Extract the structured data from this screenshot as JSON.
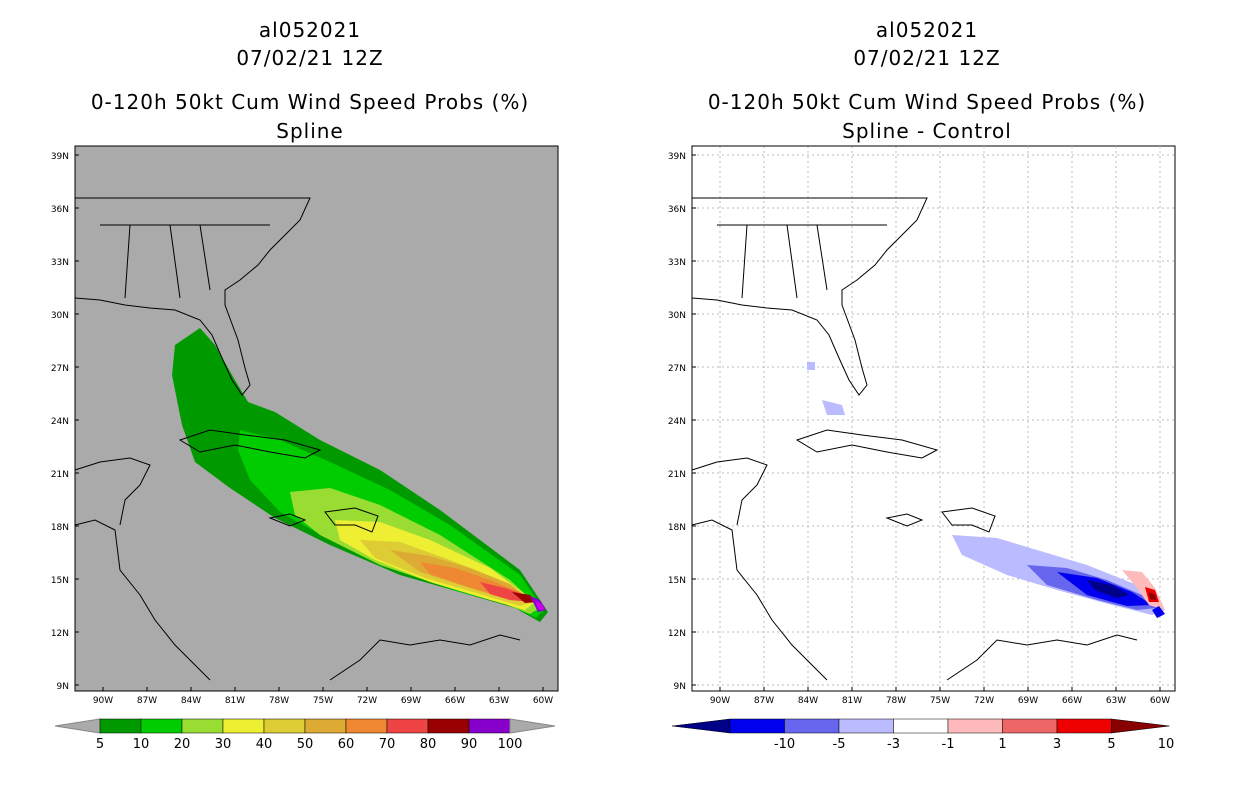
{
  "panels": [
    {
      "storm_id": "al052021",
      "datetime": "07/02/21 12Z",
      "product": "0-120h 50kt Cum Wind Speed Probs (%)",
      "subtitle": "Spline",
      "background_color": "#aaaaaa",
      "lat_labels": [
        "39N",
        "36N",
        "33N",
        "30N",
        "27N",
        "24N",
        "21N",
        "18N",
        "15N",
        "12N",
        "9N"
      ],
      "lon_labels": [
        "90W",
        "87W",
        "84W",
        "81W",
        "78W",
        "75W",
        "72W",
        "69W",
        "66W",
        "63W",
        "60W"
      ],
      "colorbar": {
        "labels": [
          "5",
          "10",
          "20",
          "30",
          "40",
          "50",
          "60",
          "70",
          "80",
          "90",
          "100"
        ],
        "colors": [
          "#009900",
          "#00cc00",
          "#99dd33",
          "#eeee33",
          "#ddcc33",
          "#ddaa33",
          "#ee8833",
          "#ee4444",
          "#990000",
          "#8800cc",
          "#cc00ee"
        ]
      }
    },
    {
      "storm_id": "al052021",
      "datetime": "07/02/21 12Z",
      "product": "0-120h 50kt Cum Wind Speed Probs (%)",
      "subtitle": "Spline - Control",
      "background_color": "#ffffff",
      "lat_labels": [
        "39N",
        "36N",
        "33N",
        "30N",
        "27N",
        "24N",
        "21N",
        "18N",
        "15N",
        "12N",
        "9N"
      ],
      "lon_labels": [
        "90W",
        "87W",
        "84W",
        "81W",
        "78W",
        "75W",
        "72W",
        "69W",
        "66W",
        "63W",
        "60W"
      ],
      "colorbar": {
        "labels": [
          "-10",
          "-5",
          "-3",
          "-1",
          "1",
          "3",
          "5",
          "10"
        ],
        "colors": [
          "#000088",
          "#0000ee",
          "#6666ee",
          "#bbbbff",
          "#ffffff",
          "#ffbbbb",
          "#ee6666",
          "#ee0000",
          "#880000"
        ]
      }
    }
  ]
}
